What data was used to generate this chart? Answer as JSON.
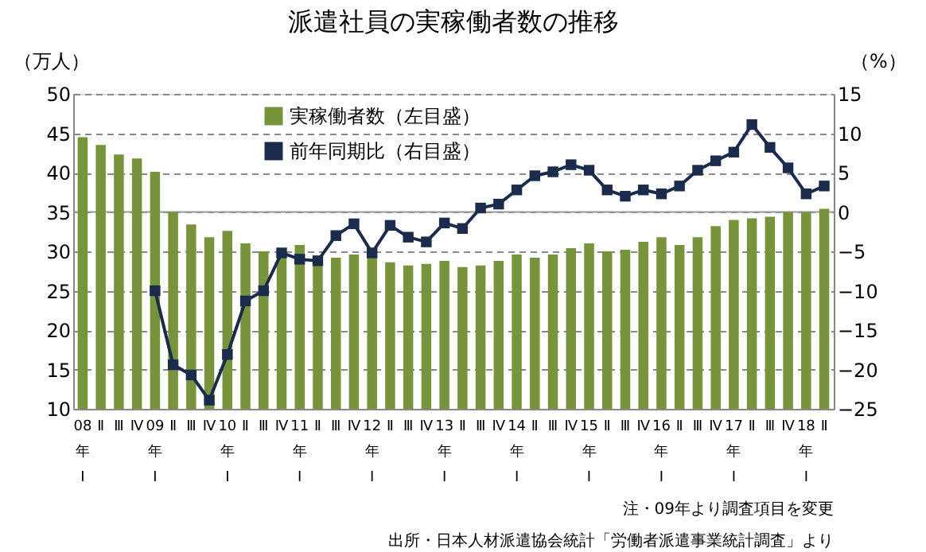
{
  "chart_data": {
    "type": "bar",
    "title": "派遣社員の実稼働者数の推移",
    "ylabel": "（万人）",
    "y2label": "（%）",
    "categories": [
      "08\n年\nⅠ",
      "Ⅱ",
      "Ⅲ",
      "Ⅳ",
      "09\n年\nⅠ",
      "Ⅱ",
      "Ⅲ",
      "Ⅳ",
      "10\n年\nⅠ",
      "Ⅱ",
      "Ⅲ",
      "Ⅳ",
      "11\n年\nⅠ",
      "Ⅱ",
      "Ⅲ",
      "Ⅳ",
      "12\n年\nⅠ",
      "Ⅱ",
      "Ⅲ",
      "Ⅳ",
      "13\n年\nⅠ",
      "Ⅱ",
      "Ⅲ",
      "Ⅳ",
      "14\n年\nⅠ",
      "Ⅱ",
      "Ⅲ",
      "Ⅳ",
      "15\n年\nⅠ",
      "Ⅱ",
      "Ⅲ",
      "Ⅳ",
      "16\n年\nⅠ",
      "Ⅱ",
      "Ⅲ",
      "Ⅳ",
      "17\n年\nⅠ",
      "Ⅱ",
      "Ⅲ",
      "Ⅳ",
      "18\n年\nⅠ",
      "Ⅱ"
    ],
    "series": [
      {
        "name": "実稼働者数（左目盛）",
        "color": "#77933c",
        "values": [
          44.5,
          43.5,
          42.3,
          41.8,
          40.1,
          35.0,
          33.4,
          31.8,
          32.6,
          31.0,
          30.0,
          29.8,
          30.8,
          29.0,
          29.2,
          29.6,
          29.6,
          28.6,
          28.2,
          28.4,
          28.8,
          28.0,
          28.2,
          28.8,
          29.6,
          29.2,
          29.6,
          30.4,
          31.0,
          30.0,
          30.2,
          31.2,
          31.8,
          30.8,
          31.8,
          33.2,
          34.0,
          34.2,
          34.4,
          35.0,
          35.0,
          35.4
        ]
      },
      {
        "name": "前年同期比（右目盛）",
        "type": "line",
        "axis": "y2",
        "color": "#1a2b4c",
        "marker": "square",
        "values": [
          null,
          null,
          null,
          null,
          -10.0,
          -19.4,
          -20.7,
          -23.9,
          -18.1,
          -11.3,
          -10.0,
          -5.2,
          -6.0,
          -6.2,
          -3.0,
          -1.5,
          -5.2,
          -1.7,
          -3.2,
          -3.8,
          -1.4,
          -2.1,
          0.5,
          1.0,
          2.8,
          4.6,
          5.1,
          6.0,
          5.3,
          2.8,
          2.0,
          2.8,
          2.3,
          3.3,
          5.3,
          6.5,
          7.6,
          11.1,
          8.2,
          5.6,
          2.3,
          3.3
        ]
      }
    ],
    "ylim": [
      10,
      50
    ],
    "yticks": [
      10,
      15,
      20,
      25,
      30,
      35,
      40,
      45,
      50
    ],
    "y2lim": [
      -25,
      15
    ],
    "y2ticks": [
      -25,
      -20,
      -15,
      -10,
      -5,
      0,
      5,
      10,
      15
    ],
    "ref_lines": [
      {
        "axis": "y2",
        "value": 0,
        "color": "#999999",
        "line_style": "solid"
      }
    ],
    "grid": "y",
    "legend": "top left",
    "annotations": [
      "注・09年より調査項目を変更",
      "出所・日本人材派遣協会統計「労働者派遣事業統計調査」より"
    ]
  }
}
